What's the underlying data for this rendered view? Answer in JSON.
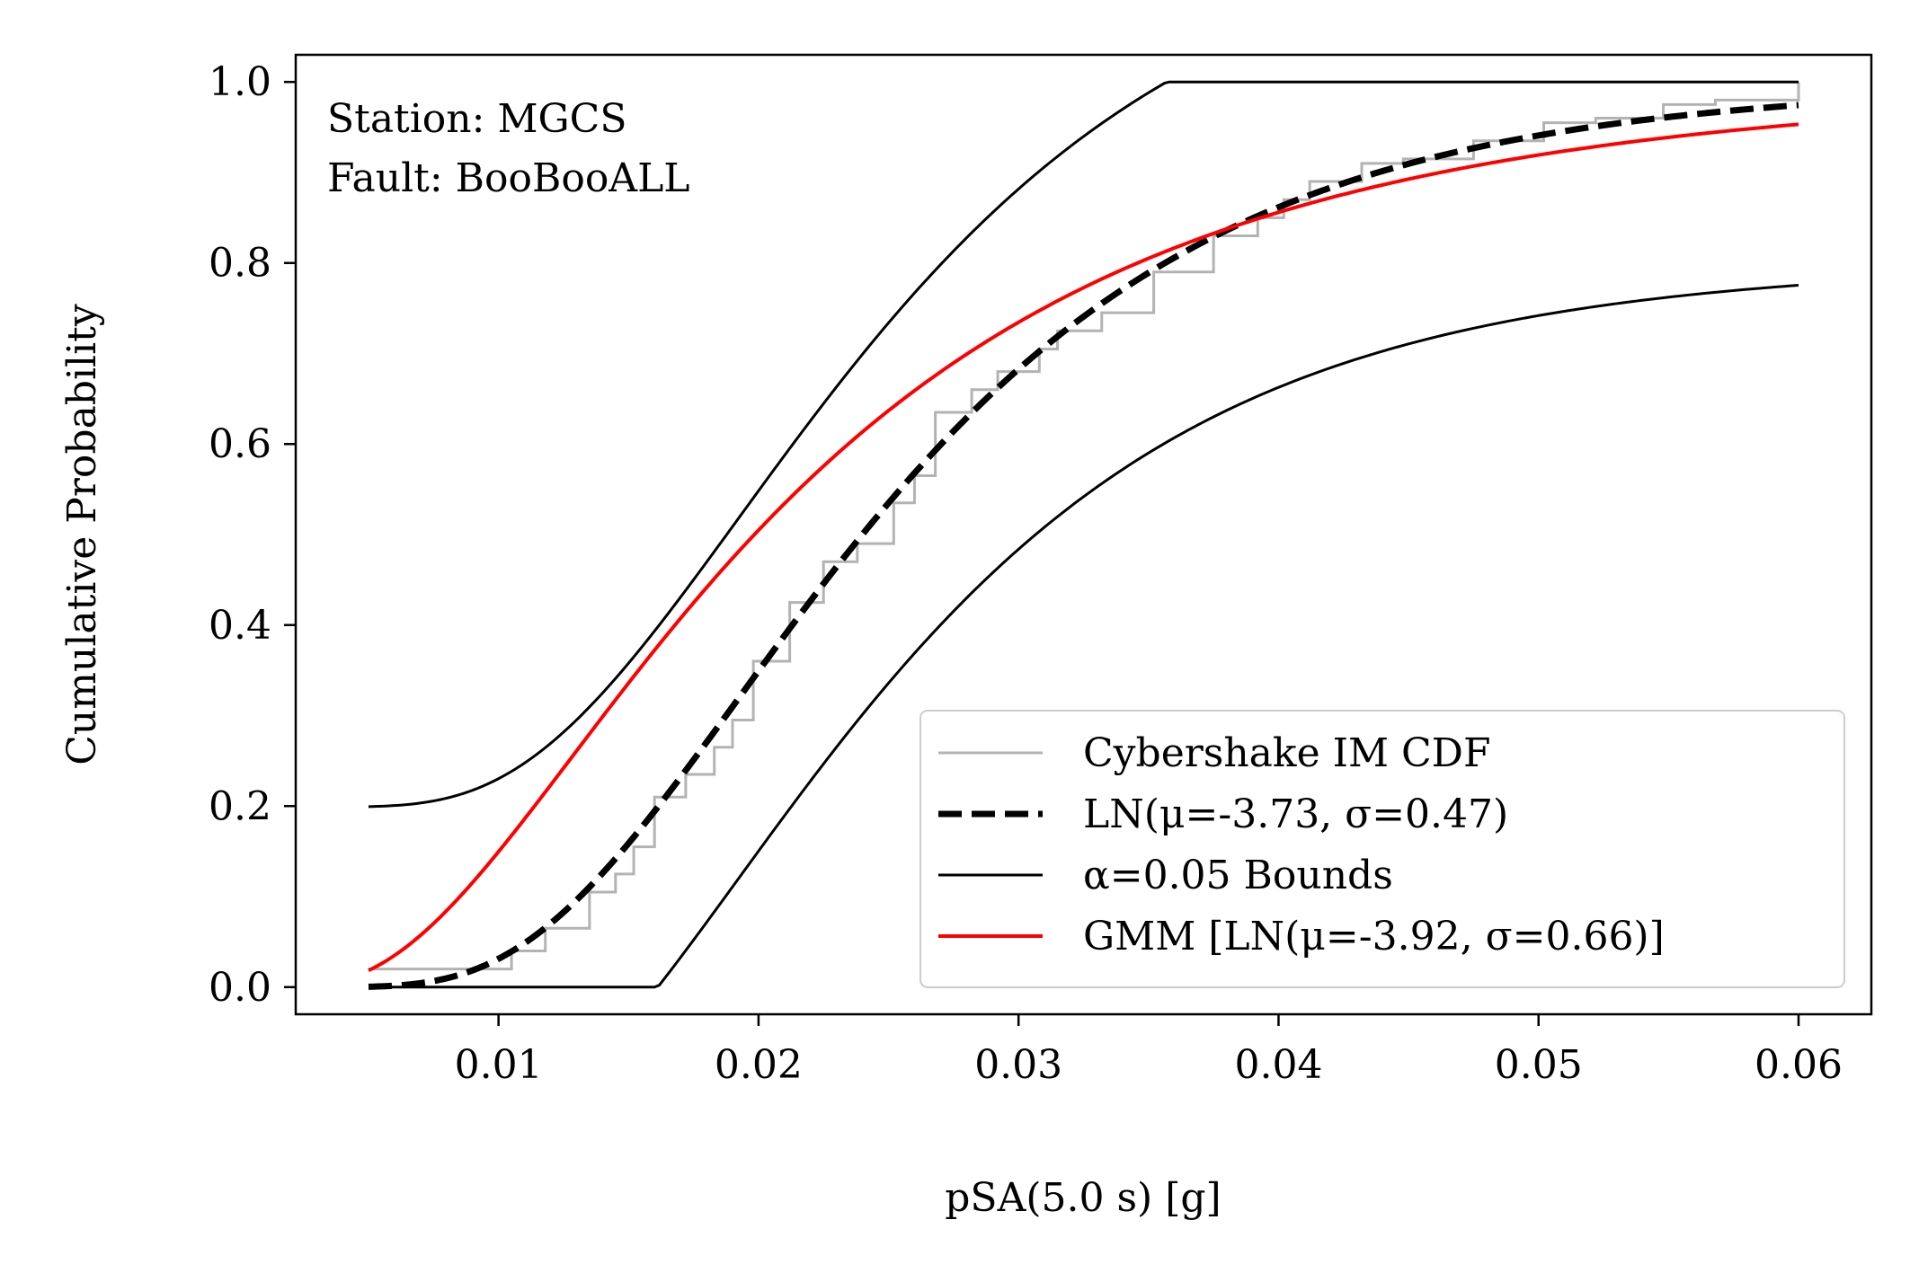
{
  "chart_data": {
    "type": "line",
    "xlabel": "pSA(5.0 s) [g]",
    "ylabel": "Cumulative Probability",
    "xlim": [
      0.0022,
      0.0628
    ],
    "ylim": [
      -0.03,
      1.03
    ],
    "xticks": [
      {
        "value": 0.01,
        "label": "0.01"
      },
      {
        "value": 0.02,
        "label": "0.02"
      },
      {
        "value": 0.03,
        "label": "0.03"
      },
      {
        "value": 0.04,
        "label": "0.04"
      },
      {
        "value": 0.05,
        "label": "0.05"
      },
      {
        "value": 0.06,
        "label": "0.06"
      }
    ],
    "yticks": [
      {
        "value": 0.0,
        "label": "0.0"
      },
      {
        "value": 0.2,
        "label": "0.2"
      },
      {
        "value": 0.4,
        "label": "0.4"
      },
      {
        "value": 0.6,
        "label": "0.6"
      },
      {
        "value": 0.8,
        "label": "0.8"
      },
      {
        "value": 1.0,
        "label": "1.0"
      }
    ],
    "grid": false,
    "annotations": [
      "Station: MGCS",
      "Fault: BooBooALL"
    ],
    "legend": {
      "placement": "lower-right",
      "entries": [
        "Cybershake IM CDF",
        "LN(μ=-3.73, σ=0.47)",
        "α=0.05 Bounds",
        "GMM [LN(μ=-3.92, σ=0.66)]"
      ]
    },
    "series": [
      {
        "name": "Cybershake IM CDF",
        "kind": "step",
        "color": "#b3b3b3",
        "x": [
          0.005,
          0.0105,
          0.0118,
          0.0135,
          0.0145,
          0.0152,
          0.016,
          0.0172,
          0.0183,
          0.019,
          0.0198,
          0.0212,
          0.0225,
          0.0238,
          0.0252,
          0.026,
          0.0268,
          0.0282,
          0.0292,
          0.0308,
          0.0315,
          0.0332,
          0.0352,
          0.0375,
          0.0392,
          0.0402,
          0.0412,
          0.0432,
          0.0448,
          0.0475,
          0.0502,
          0.0522,
          0.0548,
          0.0568,
          0.06
        ],
        "y": [
          0.02,
          0.04,
          0.065,
          0.105,
          0.125,
          0.155,
          0.21,
          0.235,
          0.265,
          0.295,
          0.36,
          0.425,
          0.47,
          0.49,
          0.535,
          0.565,
          0.635,
          0.66,
          0.68,
          0.705,
          0.725,
          0.745,
          0.79,
          0.83,
          0.85,
          0.87,
          0.89,
          0.91,
          0.915,
          0.935,
          0.955,
          0.96,
          0.975,
          0.98,
          1.0
        ]
      },
      {
        "name": "LN(μ=-3.73, σ=0.47)",
        "kind": "lognormal-cdf",
        "mu": -3.73,
        "sigma": 0.47,
        "color": "#000000",
        "dashed": true,
        "x_range": [
          0.005,
          0.06
        ]
      },
      {
        "name": "α=0.05 Bounds",
        "kind": "ks-bounds",
        "mu": -3.73,
        "sigma": 0.47,
        "d": 0.199,
        "color": "#000000",
        "x_range": [
          0.005,
          0.06
        ]
      },
      {
        "name": "GMM [LN(μ=-3.92, σ=0.66)]",
        "kind": "lognormal-cdf",
        "mu": -3.92,
        "sigma": 0.66,
        "color": "#ff0000",
        "x_range": [
          0.005,
          0.06
        ]
      }
    ]
  }
}
